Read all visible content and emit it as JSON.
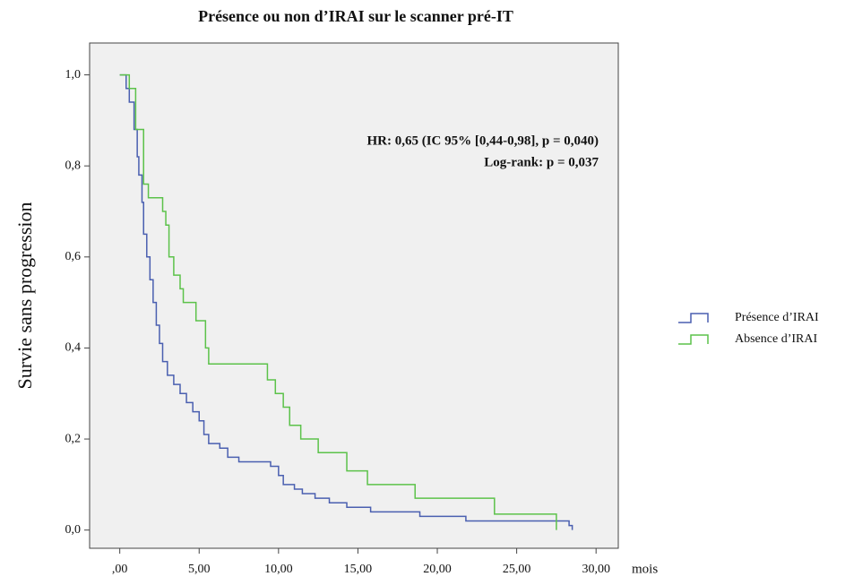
{
  "chart_data": {
    "type": "step",
    "title": "Présence ou non d’IRAI sur le scanner pré-IT",
    "y_label": "Survie sans progression",
    "x_label": "mois",
    "annotations": [
      "HR: 0,65 (IC 95% [0,44-0,98], p = 0,040)",
      "Log-rank: p = 0,037"
    ],
    "xlim": [
      -1.9,
      31.4
    ],
    "ylim": [
      -0.04,
      1.07
    ],
    "xticks": [
      {
        "value": 0,
        "label": ",00"
      },
      {
        "value": 5,
        "label": "5,00"
      },
      {
        "value": 10,
        "label": "10,00"
      },
      {
        "value": 15,
        "label": "15,00"
      },
      {
        "value": 20,
        "label": "20,00"
      },
      {
        "value": 25,
        "label": "25,00"
      },
      {
        "value": 30,
        "label": "30,00"
      }
    ],
    "yticks": [
      {
        "value": 0,
        "label": "0,0"
      },
      {
        "value": 0.2,
        "label": "0,2"
      },
      {
        "value": 0.4,
        "label": "0,4"
      },
      {
        "value": 0.6,
        "label": "0,6"
      },
      {
        "value": 0.8,
        "label": "0,8"
      },
      {
        "value": 1,
        "label": "1,0"
      }
    ],
    "legend": "right",
    "series": [
      {
        "name": "Présence d’IRAI",
        "color": "#4a5fb0",
        "x": [
          0,
          0.4,
          0.6,
          0.9,
          1.1,
          1.2,
          1.4,
          1.5,
          1.7,
          1.9,
          2.1,
          2.3,
          2.5,
          2.7,
          3.0,
          3.4,
          3.8,
          4.2,
          4.6,
          5.0,
          5.3,
          5.6,
          6.3,
          6.8,
          7.5,
          9.5,
          10.0,
          10.3,
          11.0,
          11.5,
          12.3,
          13.2,
          14.3,
          15.8,
          18.9,
          21.8,
          28.3,
          28.5
        ],
        "y": [
          1.0,
          0.97,
          0.94,
          0.88,
          0.82,
          0.78,
          0.72,
          0.65,
          0.6,
          0.55,
          0.5,
          0.45,
          0.41,
          0.37,
          0.34,
          0.32,
          0.3,
          0.28,
          0.26,
          0.24,
          0.21,
          0.19,
          0.18,
          0.16,
          0.15,
          0.14,
          0.12,
          0.1,
          0.09,
          0.08,
          0.07,
          0.06,
          0.05,
          0.04,
          0.03,
          0.02,
          0.01,
          0.0
        ]
      },
      {
        "name": "Absence d’IRAI",
        "color": "#5cc24a",
        "x": [
          0,
          0.6,
          1.0,
          1.5,
          1.8,
          2.7,
          2.9,
          3.1,
          3.4,
          3.8,
          4.0,
          4.8,
          5.4,
          5.6,
          9.3,
          9.8,
          10.3,
          10.7,
          11.4,
          12.5,
          14.3,
          15.6,
          18.6,
          23.6,
          27.5
        ],
        "y": [
          1.0,
          0.97,
          0.88,
          0.76,
          0.73,
          0.7,
          0.67,
          0.6,
          0.56,
          0.53,
          0.5,
          0.46,
          0.4,
          0.365,
          0.33,
          0.3,
          0.27,
          0.23,
          0.2,
          0.17,
          0.13,
          0.1,
          0.07,
          0.035,
          0.0
        ]
      }
    ]
  }
}
